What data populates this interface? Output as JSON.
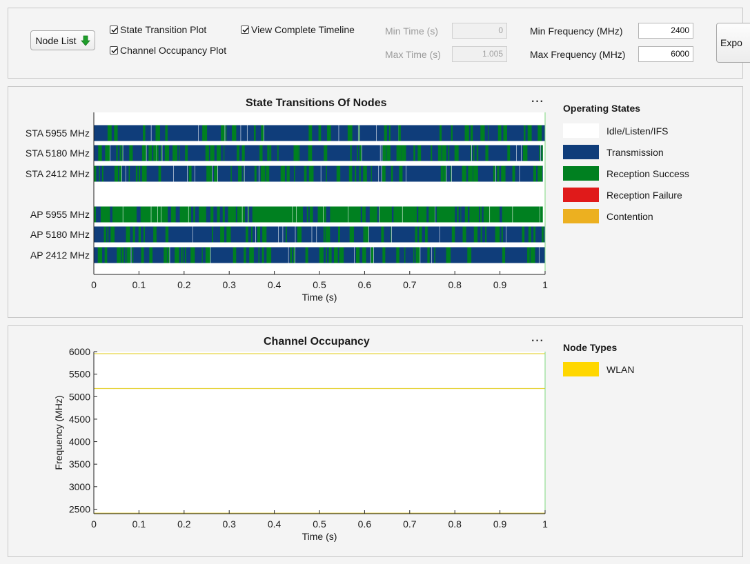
{
  "toolbar": {
    "node_list_label": "Node List",
    "checkboxes": [
      {
        "label": "State Transition Plot",
        "checked": true
      },
      {
        "label": "Channel Occupancy Plot",
        "checked": true
      },
      {
        "label": "View Complete Timeline",
        "checked": true
      }
    ],
    "min_time_label": "Min Time (s)",
    "min_time_value": "0",
    "max_time_label": "Max Time (s)",
    "max_time_value": "1.005",
    "min_freq_label": "Min Frequency (MHz)",
    "min_freq_value": "2400",
    "max_freq_label": "Max Frequency (MHz)",
    "max_freq_value": "6000",
    "export_label": "Expo"
  },
  "state_plot": {
    "title": "State Transitions Of Nodes",
    "more_label": "···",
    "legend_title": "Operating States",
    "legend": [
      {
        "label": "Idle/Listen/IFS",
        "color": "#ffffff"
      },
      {
        "label": "Transmission",
        "color": "#0f3d7a"
      },
      {
        "label": "Reception Success",
        "color": "#008020"
      },
      {
        "label": "Reception Failure",
        "color": "#e01a1a"
      },
      {
        "label": "Contention",
        "color": "#ecb020"
      }
    ]
  },
  "occupancy_plot": {
    "title": "Channel Occupancy",
    "more_label": "···",
    "legend_title": "Node Types",
    "legend": [
      {
        "label": "WLAN",
        "color": "#ffd700"
      }
    ]
  },
  "chart_data": [
    {
      "type": "timeline",
      "title": "State Transitions Of Nodes",
      "xlabel": "Time (s)",
      "ylabel": "",
      "xlim": [
        0,
        1
      ],
      "xticks": [
        0,
        0.1,
        0.2,
        0.3,
        0.4,
        0.5,
        0.6,
        0.7,
        0.8,
        0.9,
        1
      ],
      "nodes": [
        "STA 5955 MHz",
        "STA 5180 MHz",
        "STA 2412 MHz",
        "AP 5955 MHz",
        "AP 5180 MHz",
        "AP 2412 MHz"
      ],
      "series": [
        {
          "node": "STA 5955 MHz",
          "end_time": 1.0,
          "dominant_state": "Transmission",
          "mix": {
            "Transmission": 0.7,
            "Reception Success": 0.3
          }
        },
        {
          "node": "STA 5180 MHz",
          "end_time": 0.995,
          "dominant_state": "Transmission",
          "mix": {
            "Transmission": 0.5,
            "Reception Success": 0.5
          }
        },
        {
          "node": "STA 2412 MHz",
          "end_time": 0.995,
          "dominant_state": "Transmission",
          "mix": {
            "Transmission": 0.55,
            "Reception Success": 0.45
          }
        },
        {
          "node": "AP 5955 MHz",
          "end_time": 0.995,
          "dominant_state": "Reception Success",
          "mix": {
            "Transmission": 0.3,
            "Reception Success": 0.7
          }
        },
        {
          "node": "AP 5180 MHz",
          "end_time": 1.0,
          "dominant_state": "Transmission",
          "mix": {
            "Transmission": 0.55,
            "Reception Success": 0.45
          }
        },
        {
          "node": "AP 2412 MHz",
          "end_time": 1.0,
          "dominant_state": "Transmission",
          "mix": {
            "Transmission": 0.55,
            "Reception Success": 0.45
          }
        }
      ],
      "grid": false
    },
    {
      "type": "line",
      "title": "Channel Occupancy",
      "xlabel": "Time (s)",
      "ylabel": "Frequency (MHz)",
      "xlim": [
        0,
        1
      ],
      "ylim": [
        2400,
        6000
      ],
      "xticks": [
        0,
        0.1,
        0.2,
        0.3,
        0.4,
        0.5,
        0.6,
        0.7,
        0.8,
        0.9,
        1
      ],
      "yticks": [
        2500,
        3000,
        3500,
        4000,
        4500,
        5000,
        5500,
        6000
      ],
      "series": [
        {
          "name": "WLAN",
          "y": 5955,
          "x": [
            0,
            1
          ]
        },
        {
          "name": "WLAN",
          "y": 5180,
          "x": [
            0,
            1
          ]
        },
        {
          "name": "WLAN",
          "y": 2412,
          "x": [
            0,
            1
          ]
        }
      ],
      "grid": false
    }
  ]
}
